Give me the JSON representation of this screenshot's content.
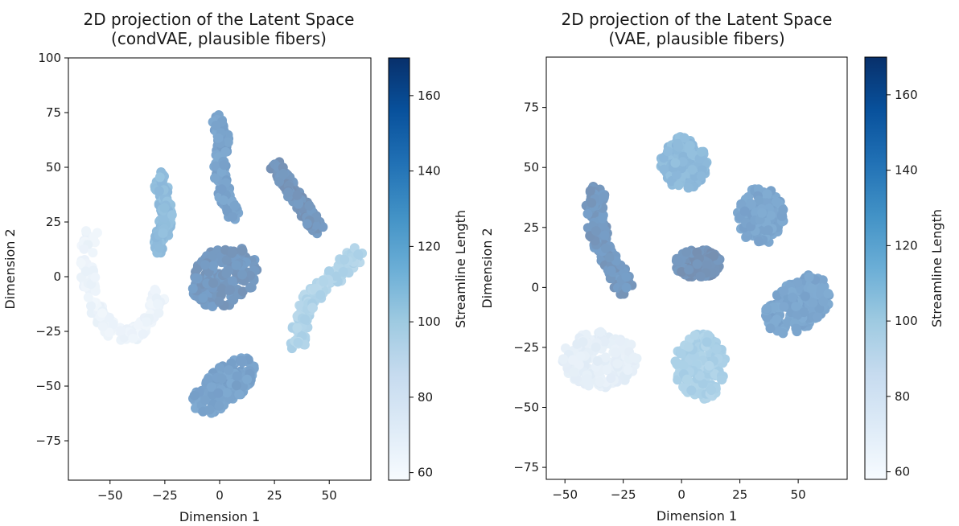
{
  "chart_data": [
    {
      "type": "scatter",
      "title": "2D projection of the Latent Space\n(condVAE, plausible fibers)",
      "xlabel": "Dimension 1",
      "ylabel": "Dimension 2",
      "xlim": [
        -69,
        69
      ],
      "ylim": [
        -93,
        100
      ],
      "xticks": [
        -50,
        -25,
        0,
        25,
        50
      ],
      "yticks": [
        -75,
        -50,
        -25,
        0,
        25,
        50,
        75,
        100
      ],
      "xtick_labels": [
        "−50",
        "−25",
        "0",
        "25",
        "50"
      ],
      "ytick_labels": [
        "−75",
        "−50",
        "−25",
        "0",
        "25",
        "50",
        "75",
        "100"
      ],
      "grid": false,
      "colorbar": {
        "label": "Streamline Length",
        "range": [
          58,
          170
        ],
        "ticks": [
          60,
          80,
          100,
          120,
          140,
          160
        ],
        "tick_labels": [
          "60",
          "80",
          "100",
          "120",
          "140",
          "160"
        ],
        "colormap": "Blues"
      },
      "clusters": [
        {
          "id": "crescent",
          "shape": "curve",
          "path": [
            [
              -59,
              22
            ],
            [
              -61,
              5
            ],
            [
              -59,
              -8
            ],
            [
              -55,
              -18
            ],
            [
              -50,
              -24
            ],
            [
              -43,
              -27
            ],
            [
              -36,
              -25
            ],
            [
              -31,
              -17
            ],
            [
              -27,
              -8
            ]
          ],
          "width": 7,
          "value": 72
        },
        {
          "id": "upper-left-strip",
          "shape": "curve",
          "path": [
            [
              -28,
              48
            ],
            [
              -26,
              38
            ],
            [
              -24,
              28
            ],
            [
              -26,
              20
            ],
            [
              -28,
              12
            ]
          ],
          "width": 6,
          "value": 132
        },
        {
          "id": "upper-center-strip",
          "shape": "curve",
          "path": [
            [
              -1,
              72
            ],
            [
              2,
              62
            ],
            [
              0,
              52
            ],
            [
              1,
              42
            ],
            [
              4,
              33
            ],
            [
              6,
              29
            ]
          ],
          "width": 6,
          "value": 152
        },
        {
          "id": "upper-right-strip",
          "shape": "curve",
          "path": [
            [
              26,
              50
            ],
            [
              31,
              42
            ],
            [
              36,
              35
            ],
            [
              41,
              27
            ],
            [
              45,
              22
            ]
          ],
          "width": 6,
          "value": 162
        },
        {
          "id": "center-blob",
          "shape": "blob",
          "center": [
            2,
            0
          ],
          "radii": [
            16,
            13
          ],
          "angle": 35,
          "value": 160
        },
        {
          "id": "bottom-blob",
          "shape": "blob",
          "center": [
            2,
            -50
          ],
          "radii": [
            18,
            8
          ],
          "angle": 40,
          "value": 152
        },
        {
          "id": "right-strip",
          "shape": "curve",
          "path": [
            [
              36,
              -32
            ],
            [
              37,
              -20
            ],
            [
              42,
              -10
            ],
            [
              50,
              -2
            ],
            [
              57,
              5
            ],
            [
              62,
              10
            ]
          ],
          "width": 8,
          "value": 112
        }
      ]
    },
    {
      "type": "scatter",
      "title": "2D projection of the Latent Space\n(VAE, plausible fibers)",
      "xlabel": "Dimension 1",
      "ylabel": "Dimension 2",
      "xlim": [
        -58,
        71
      ],
      "ylim": [
        -80,
        96
      ],
      "xticks": [
        -50,
        -25,
        0,
        25,
        50
      ],
      "yticks": [
        -75,
        -50,
        -25,
        0,
        25,
        50,
        75
      ],
      "xtick_labels": [
        "−50",
        "−25",
        "0",
        "25",
        "50"
      ],
      "ytick_labels": [
        "−75",
        "−50",
        "−25",
        "0",
        "25",
        "50",
        "75"
      ],
      "grid": false,
      "colorbar": {
        "label": "Streamline Length",
        "range": [
          58,
          170
        ],
        "ticks": [
          60,
          80,
          100,
          120,
          140,
          160
        ],
        "tick_labels": [
          "60",
          "80",
          "100",
          "120",
          "140",
          "160"
        ],
        "colormap": "Blues"
      },
      "clusters": [
        {
          "id": "top-blob",
          "shape": "blob",
          "center": [
            1,
            52
          ],
          "radii": [
            10,
            11
          ],
          "angle": 0,
          "value": 134
        },
        {
          "id": "left-blob",
          "shape": "curve",
          "path": [
            [
              -37,
              40
            ],
            [
              -37,
              28
            ],
            [
              -34,
              16
            ],
            [
              -28,
              7
            ],
            [
              -24,
              -1
            ]
          ],
          "width": 8,
          "value": 160
        },
        {
          "id": "right-upper-blob",
          "shape": "blob",
          "center": [
            34,
            30
          ],
          "radii": [
            10,
            12
          ],
          "angle": 0,
          "value": 150
        },
        {
          "id": "center-blob",
          "shape": "blob",
          "center": [
            7,
            10
          ],
          "radii": [
            10,
            6
          ],
          "angle": 0,
          "value": 164
        },
        {
          "id": "right-lower-blob",
          "shape": "blob",
          "center": [
            50,
            -7
          ],
          "radii": [
            16,
            10
          ],
          "angle": 35,
          "value": 150
        },
        {
          "id": "bottom-left-blob",
          "shape": "blob",
          "center": [
            -35,
            -30
          ],
          "radii": [
            16,
            12
          ],
          "angle": 0,
          "value": 80
        },
        {
          "id": "bottom-center-blob",
          "shape": "blob",
          "center": [
            8,
            -33
          ],
          "radii": [
            11,
            14
          ],
          "angle": 0,
          "value": 115
        }
      ]
    }
  ]
}
